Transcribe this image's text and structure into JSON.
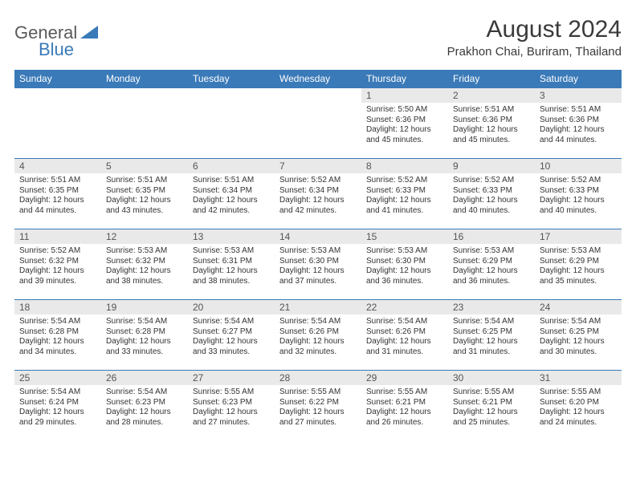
{
  "logo": {
    "general": "General",
    "blue": "Blue"
  },
  "title": "August 2024",
  "location": "Prakhon Chai, Buriram, Thailand",
  "colors": {
    "header_bg": "#3a7ab8",
    "header_text": "#ffffff",
    "daynum_bg": "#e9e9e9",
    "border": "#3a7ab8",
    "background": "#ffffff"
  },
  "day_names": [
    "Sunday",
    "Monday",
    "Tuesday",
    "Wednesday",
    "Thursday",
    "Friday",
    "Saturday"
  ],
  "weeks": [
    [
      null,
      null,
      null,
      null,
      {
        "n": "1",
        "sunrise": "5:50 AM",
        "sunset": "6:36 PM",
        "daylight": "12 hours and 45 minutes."
      },
      {
        "n": "2",
        "sunrise": "5:51 AM",
        "sunset": "6:36 PM",
        "daylight": "12 hours and 45 minutes."
      },
      {
        "n": "3",
        "sunrise": "5:51 AM",
        "sunset": "6:36 PM",
        "daylight": "12 hours and 44 minutes."
      }
    ],
    [
      {
        "n": "4",
        "sunrise": "5:51 AM",
        "sunset": "6:35 PM",
        "daylight": "12 hours and 44 minutes."
      },
      {
        "n": "5",
        "sunrise": "5:51 AM",
        "sunset": "6:35 PM",
        "daylight": "12 hours and 43 minutes."
      },
      {
        "n": "6",
        "sunrise": "5:51 AM",
        "sunset": "6:34 PM",
        "daylight": "12 hours and 42 minutes."
      },
      {
        "n": "7",
        "sunrise": "5:52 AM",
        "sunset": "6:34 PM",
        "daylight": "12 hours and 42 minutes."
      },
      {
        "n": "8",
        "sunrise": "5:52 AM",
        "sunset": "6:33 PM",
        "daylight": "12 hours and 41 minutes."
      },
      {
        "n": "9",
        "sunrise": "5:52 AM",
        "sunset": "6:33 PM",
        "daylight": "12 hours and 40 minutes."
      },
      {
        "n": "10",
        "sunrise": "5:52 AM",
        "sunset": "6:33 PM",
        "daylight": "12 hours and 40 minutes."
      }
    ],
    [
      {
        "n": "11",
        "sunrise": "5:52 AM",
        "sunset": "6:32 PM",
        "daylight": "12 hours and 39 minutes."
      },
      {
        "n": "12",
        "sunrise": "5:53 AM",
        "sunset": "6:32 PM",
        "daylight": "12 hours and 38 minutes."
      },
      {
        "n": "13",
        "sunrise": "5:53 AM",
        "sunset": "6:31 PM",
        "daylight": "12 hours and 38 minutes."
      },
      {
        "n": "14",
        "sunrise": "5:53 AM",
        "sunset": "6:30 PM",
        "daylight": "12 hours and 37 minutes."
      },
      {
        "n": "15",
        "sunrise": "5:53 AM",
        "sunset": "6:30 PM",
        "daylight": "12 hours and 36 minutes."
      },
      {
        "n": "16",
        "sunrise": "5:53 AM",
        "sunset": "6:29 PM",
        "daylight": "12 hours and 36 minutes."
      },
      {
        "n": "17",
        "sunrise": "5:53 AM",
        "sunset": "6:29 PM",
        "daylight": "12 hours and 35 minutes."
      }
    ],
    [
      {
        "n": "18",
        "sunrise": "5:54 AM",
        "sunset": "6:28 PM",
        "daylight": "12 hours and 34 minutes."
      },
      {
        "n": "19",
        "sunrise": "5:54 AM",
        "sunset": "6:28 PM",
        "daylight": "12 hours and 33 minutes."
      },
      {
        "n": "20",
        "sunrise": "5:54 AM",
        "sunset": "6:27 PM",
        "daylight": "12 hours and 33 minutes."
      },
      {
        "n": "21",
        "sunrise": "5:54 AM",
        "sunset": "6:26 PM",
        "daylight": "12 hours and 32 minutes."
      },
      {
        "n": "22",
        "sunrise": "5:54 AM",
        "sunset": "6:26 PM",
        "daylight": "12 hours and 31 minutes."
      },
      {
        "n": "23",
        "sunrise": "5:54 AM",
        "sunset": "6:25 PM",
        "daylight": "12 hours and 31 minutes."
      },
      {
        "n": "24",
        "sunrise": "5:54 AM",
        "sunset": "6:25 PM",
        "daylight": "12 hours and 30 minutes."
      }
    ],
    [
      {
        "n": "25",
        "sunrise": "5:54 AM",
        "sunset": "6:24 PM",
        "daylight": "12 hours and 29 minutes."
      },
      {
        "n": "26",
        "sunrise": "5:54 AM",
        "sunset": "6:23 PM",
        "daylight": "12 hours and 28 minutes."
      },
      {
        "n": "27",
        "sunrise": "5:55 AM",
        "sunset": "6:23 PM",
        "daylight": "12 hours and 27 minutes."
      },
      {
        "n": "28",
        "sunrise": "5:55 AM",
        "sunset": "6:22 PM",
        "daylight": "12 hours and 27 minutes."
      },
      {
        "n": "29",
        "sunrise": "5:55 AM",
        "sunset": "6:21 PM",
        "daylight": "12 hours and 26 minutes."
      },
      {
        "n": "30",
        "sunrise": "5:55 AM",
        "sunset": "6:21 PM",
        "daylight": "12 hours and 25 minutes."
      },
      {
        "n": "31",
        "sunrise": "5:55 AM",
        "sunset": "6:20 PM",
        "daylight": "12 hours and 24 minutes."
      }
    ]
  ],
  "labels": {
    "sunrise": "Sunrise: ",
    "sunset": "Sunset: ",
    "daylight": "Daylight: "
  }
}
